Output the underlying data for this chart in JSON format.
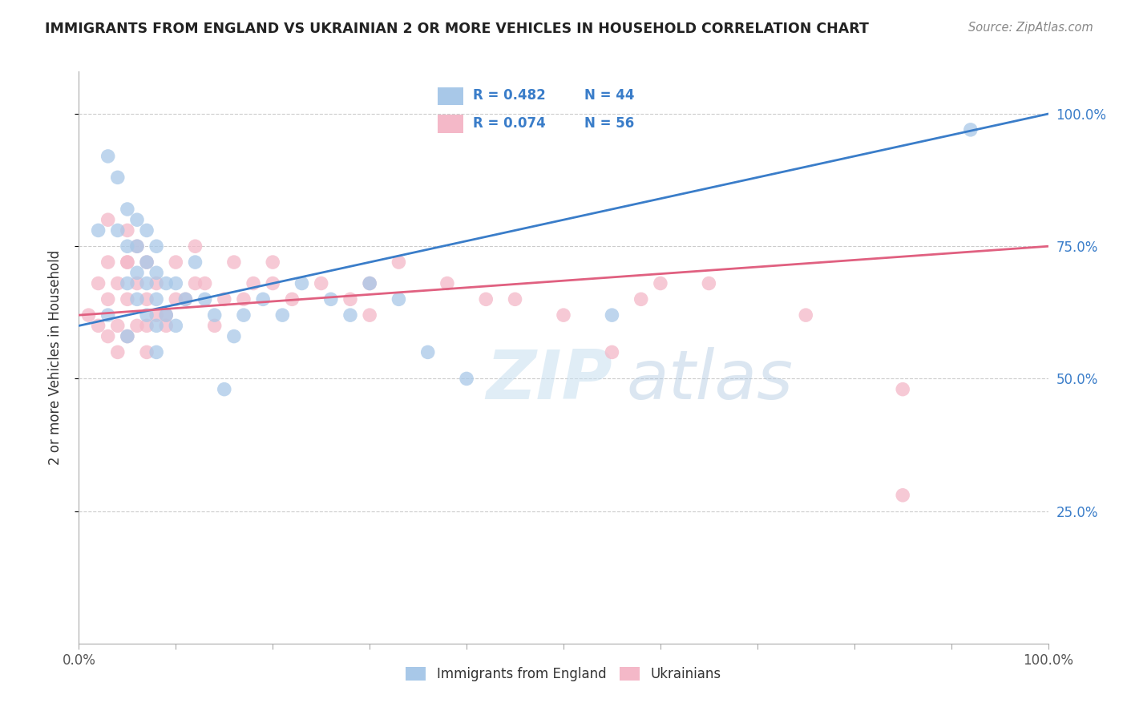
{
  "title": "IMMIGRANTS FROM ENGLAND VS UKRAINIAN 2 OR MORE VEHICLES IN HOUSEHOLD CORRELATION CHART",
  "source": "Source: ZipAtlas.com",
  "ylabel": "2 or more Vehicles in Household",
  "xlim": [
    0.0,
    1.0
  ],
  "ylim": [
    0.0,
    1.08
  ],
  "xtick_positions": [
    0.0,
    0.1,
    0.2,
    0.3,
    0.4,
    0.5,
    0.6,
    0.7,
    0.8,
    0.9,
    1.0
  ],
  "xtick_labels": [
    "0.0%",
    "",
    "",
    "",
    "",
    "",
    "",
    "",
    "",
    "",
    "100.0%"
  ],
  "ytick_positions": [
    0.25,
    0.5,
    0.75,
    1.0
  ],
  "ytick_labels": [
    "25.0%",
    "50.0%",
    "75.0%",
    "100.0%"
  ],
  "england_R": 0.482,
  "england_N": 44,
  "ukraine_R": 0.074,
  "ukraine_N": 56,
  "england_color": "#a8c8e8",
  "ukraine_color": "#f4b8c8",
  "england_line_color": "#3a7dc9",
  "ukraine_line_color": "#e06080",
  "watermark_zip": "ZIP",
  "watermark_atlas": "atlas",
  "england_x": [
    0.02,
    0.03,
    0.04,
    0.04,
    0.05,
    0.05,
    0.05,
    0.06,
    0.06,
    0.06,
    0.06,
    0.07,
    0.07,
    0.07,
    0.07,
    0.08,
    0.08,
    0.08,
    0.08,
    0.09,
    0.09,
    0.1,
    0.1,
    0.11,
    0.12,
    0.13,
    0.14,
    0.16,
    0.17,
    0.19,
    0.21,
    0.23,
    0.26,
    0.28,
    0.3,
    0.33,
    0.36,
    0.4,
    0.55,
    0.92,
    0.03,
    0.05,
    0.08,
    0.15
  ],
  "england_y": [
    0.78,
    0.92,
    0.78,
    0.88,
    0.68,
    0.75,
    0.82,
    0.65,
    0.7,
    0.75,
    0.8,
    0.62,
    0.68,
    0.72,
    0.78,
    0.6,
    0.65,
    0.7,
    0.75,
    0.62,
    0.68,
    0.6,
    0.68,
    0.65,
    0.72,
    0.65,
    0.62,
    0.58,
    0.62,
    0.65,
    0.62,
    0.68,
    0.65,
    0.62,
    0.68,
    0.65,
    0.55,
    0.5,
    0.62,
    0.97,
    0.62,
    0.58,
    0.55,
    0.48
  ],
  "ukraine_x": [
    0.01,
    0.02,
    0.02,
    0.03,
    0.03,
    0.03,
    0.04,
    0.04,
    0.04,
    0.05,
    0.05,
    0.05,
    0.05,
    0.06,
    0.06,
    0.06,
    0.07,
    0.07,
    0.07,
    0.08,
    0.08,
    0.09,
    0.1,
    0.1,
    0.11,
    0.12,
    0.13,
    0.14,
    0.15,
    0.16,
    0.17,
    0.18,
    0.2,
    0.22,
    0.25,
    0.28,
    0.3,
    0.33,
    0.38,
    0.42,
    0.5,
    0.55,
    0.58,
    0.65,
    0.85,
    0.03,
    0.05,
    0.07,
    0.09,
    0.12,
    0.2,
    0.3,
    0.45,
    0.6,
    0.75,
    0.85
  ],
  "ukraine_y": [
    0.62,
    0.6,
    0.68,
    0.58,
    0.65,
    0.72,
    0.55,
    0.6,
    0.68,
    0.58,
    0.65,
    0.72,
    0.78,
    0.6,
    0.68,
    0.75,
    0.6,
    0.65,
    0.72,
    0.62,
    0.68,
    0.6,
    0.65,
    0.72,
    0.65,
    0.75,
    0.68,
    0.6,
    0.65,
    0.72,
    0.65,
    0.68,
    0.72,
    0.65,
    0.68,
    0.65,
    0.68,
    0.72,
    0.68,
    0.65,
    0.62,
    0.55,
    0.65,
    0.68,
    0.28,
    0.8,
    0.72,
    0.55,
    0.62,
    0.68,
    0.68,
    0.62,
    0.65,
    0.68,
    0.62,
    0.48
  ]
}
